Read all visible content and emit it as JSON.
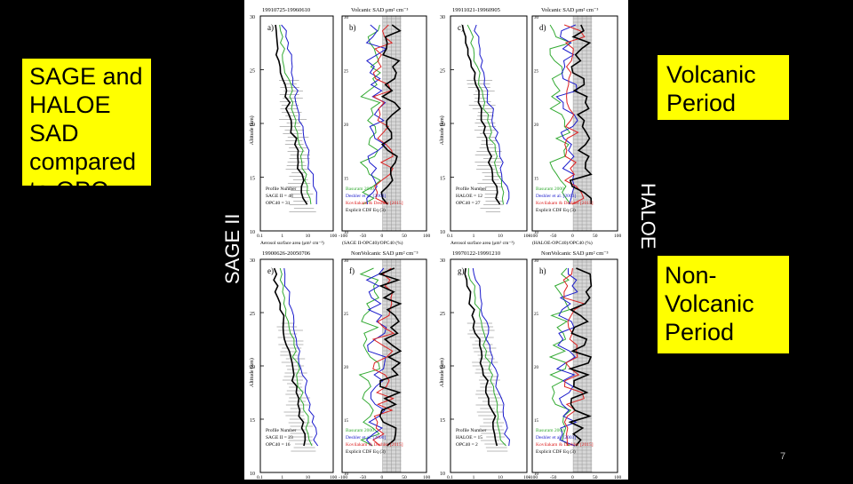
{
  "left_box": {
    "lines": [
      "SAGE and",
      "HALOE SAD",
      "compared",
      "to OPC"
    ]
  },
  "right_top_box": {
    "lines": [
      "Volcanic",
      "Period"
    ]
  },
  "right_bottom_box": {
    "lines": [
      "Non-",
      "Volcanic",
      "Period"
    ]
  },
  "side_labels": {
    "sage": "SAGE II",
    "haloe": "HALOE"
  },
  "page_number": "7",
  "colors": {
    "highlight": "#ffff00",
    "background": "#000000",
    "series_green": "#33aa33",
    "series_blue": "#1a1acc",
    "series_red": "#dd2222",
    "series_black": "#000000"
  },
  "figure": {
    "panels": [
      {
        "letter": "a)",
        "header": "19910725-19960610",
        "count_label": "SAGE II = 48",
        "opc_label": "OPC40 = 31",
        "xlabel": "Aerosol surface area (μm² cm⁻³)"
      },
      {
        "letter": "b)",
        "header": "Volcanic SAD μm² cm⁻³",
        "xlabel": "(SAGE II-OPC40)/OPC40 (%)",
        "legend": [
          "Basuram 2000",
          "Deshler et al. [2003]",
          "Kovilakam & Deshler [2015]",
          "Explicit CDF Eq (3)"
        ]
      },
      {
        "letter": "c)",
        "header": "19911021-19960905",
        "count_label": "HALOE = 12",
        "opc_label": "OPC40 = 27",
        "xlabel": "Aerosol surface area (μm² cm⁻³)"
      },
      {
        "letter": "d)",
        "header": "Volcanic SAD μm² cm⁻³",
        "xlabel": "(HALOE-OPC40)/OPC40 (%)",
        "legend": [
          "Basuram 2000",
          "Deshler et al. [2003]",
          "Kovilakam & Deshler [2015]",
          "Explicit CDF Eq (3)"
        ]
      },
      {
        "letter": "e)",
        "header": "19900626-20050706",
        "count_label": "SAGE II = 23",
        "opc_label": "OPC40 = 16",
        "xlabel": "Aerosol surface area (μm² cm⁻³)"
      },
      {
        "letter": "f)",
        "header": "NonVolcanic SAD μm² cm⁻³",
        "xlabel": "(SAGE II-OPC40)/OPC40 (%)",
        "legend": [
          "Basuram 2000",
          "Deshler et al. [2000]",
          "Kovilakam & Deshler [2015]",
          "Explicit CDF Eq (3)"
        ]
      },
      {
        "letter": "g)",
        "header": "19970122-19991210",
        "count_label": "HALOE = 15",
        "opc_label": "OPC40 = 2",
        "xlabel": "Aerosol surface area (μm² cm⁻³)"
      },
      {
        "letter": "h)",
        "header": "NonVolcanic SAD μm² cm⁻³",
        "xlabel": "(HALOE-OPC40)/OPC40 (%)",
        "legend": [
          "Basuram 2000",
          "Deshler et al. [2003]",
          "Kovilakam & Deshler [2015]",
          "Explicit CDF Eq (3)"
        ]
      }
    ],
    "ylabel": "Altitude (km)",
    "profile_label": "Profile Number",
    "y_ticks": [
      "30",
      "25",
      "20",
      "15",
      "10"
    ],
    "x_ticks_left": [
      "0.1",
      "1",
      "10",
      "100"
    ],
    "x_ticks_right": [
      "-100",
      "-50",
      "0",
      "50",
      "100"
    ]
  }
}
